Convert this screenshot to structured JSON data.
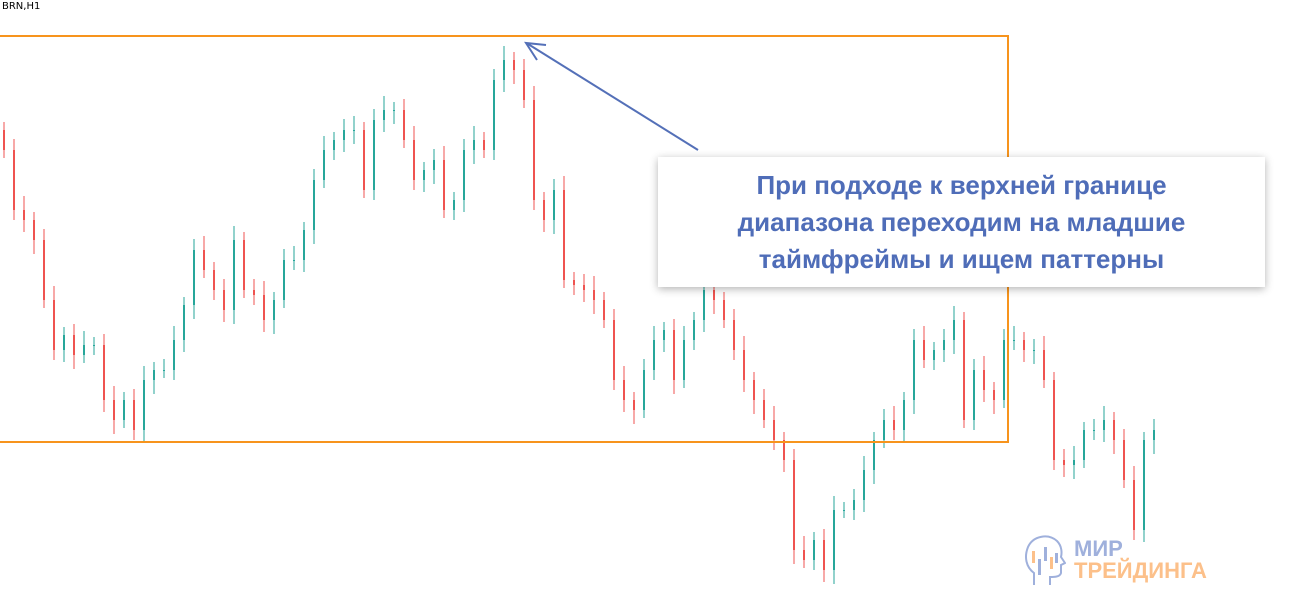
{
  "symbol_label": "BRN,H1",
  "callout": {
    "lines": [
      "При подходе к верхней границе",
      "диапазона переходим на младшие",
      "таймфреймы и ищем паттерны"
    ]
  },
  "logo": {
    "line1": "МИР",
    "line2": "ТРЕЙДИНГА"
  },
  "colors": {
    "up": "#26a69a",
    "down": "#ef5350",
    "range_box": "#f7941d",
    "arrow": "#5470b8",
    "text": "#4f6db8"
  },
  "chart_data": {
    "type": "candlestick",
    "title": "BRN,H1",
    "grid": false,
    "range_box": {
      "top": 564,
      "bottom": 158
    },
    "closes": [
      450,
      390,
      380,
      360,
      300,
      250,
      265,
      245,
      255,
      255,
      200,
      180,
      200,
      170,
      220,
      230,
      230,
      260,
      295,
      350,
      330,
      310,
      290,
      360,
      310,
      305,
      280,
      300,
      340,
      340,
      370,
      420,
      450,
      460,
      470,
      470,
      410,
      480,
      490,
      490,
      460,
      420,
      430,
      440,
      390,
      400,
      450,
      460,
      450,
      520,
      540,
      530,
      500,
      400,
      380,
      410,
      320,
      315,
      310,
      300,
      280,
      220,
      200,
      190,
      230,
      260,
      270,
      220,
      260,
      280,
      310,
      300,
      280,
      250,
      220,
      200,
      180,
      160,
      140,
      50,
      40,
      60,
      30,
      90,
      90,
      100,
      130,
      160,
      180,
      170,
      200,
      260,
      240,
      250,
      260,
      280,
      180,
      230,
      210,
      200,
      260,
      260,
      250,
      250,
      220,
      140,
      135,
      140,
      170,
      170,
      180,
      160,
      120,
      70,
      160,
      170
    ]
  }
}
